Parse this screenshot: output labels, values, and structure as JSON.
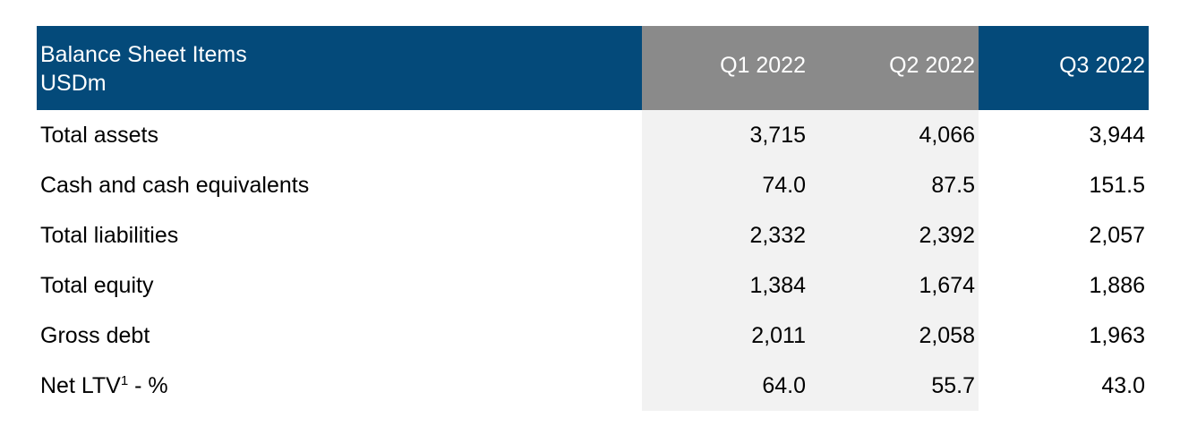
{
  "table": {
    "header": {
      "title_line1": "Balance Sheet Items",
      "title_line2": "USDm",
      "columns": [
        "Q1 2022",
        "Q2 2022",
        "Q3 2022"
      ]
    },
    "rows": [
      {
        "label": "Total assets",
        "values": [
          "3,715",
          "4,066",
          "3,944"
        ]
      },
      {
        "label": "Cash and cash equivalents",
        "values": [
          "74.0",
          "87.5",
          "151.5"
        ]
      },
      {
        "label": "Total liabilities",
        "values": [
          "2,332",
          "2,392",
          "2,057"
        ]
      },
      {
        "label": "Total equity",
        "values": [
          "1,384",
          "1,674",
          "1,886"
        ]
      },
      {
        "label": "Gross debt",
        "values": [
          "2,011",
          "2,058",
          "1,963"
        ]
      },
      {
        "label": "Net LTV",
        "footnote": "1",
        "label_suffix": " - %",
        "values": [
          "64.0",
          "55.7",
          "43.0"
        ]
      }
    ]
  },
  "colors": {
    "header_blue": "#044a7a",
    "header_grey": "#8a8a8a",
    "shaded_column": "#f2f2f2"
  }
}
